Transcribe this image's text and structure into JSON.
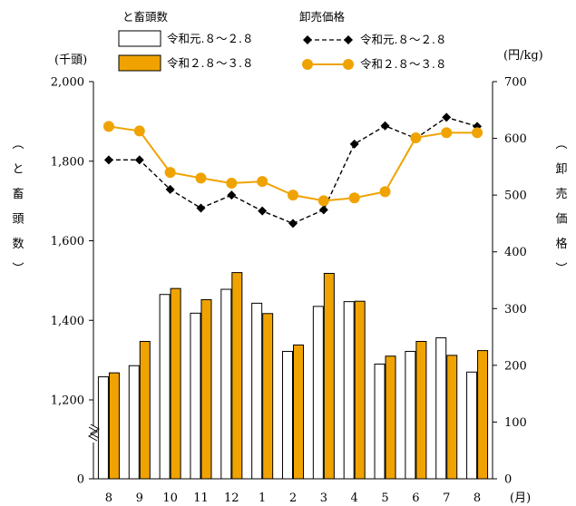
{
  "chart_data": {
    "type": "bar+line",
    "categories": [
      "8",
      "9",
      "10",
      "11",
      "12",
      "1",
      "2",
      "3",
      "4",
      "5",
      "6",
      "7",
      "8"
    ],
    "x_unit": "(月)",
    "left_axis": {
      "unit": "(千頭)",
      "label_chars": [
        "︵",
        "と",
        "畜",
        "頭",
        "数",
        "︶"
      ],
      "ticks": [
        "0",
        "1,200",
        "1,400",
        "1,600",
        "1,800",
        "2,000"
      ],
      "ylim": [
        1100,
        2000
      ],
      "broken": true
    },
    "right_axis": {
      "unit": "(円/kg)",
      "label_chars": [
        "︵",
        "卸",
        "売",
        "価",
        "格",
        "︶"
      ],
      "ticks": [
        "0",
        "100",
        "200",
        "300",
        "400",
        "500",
        "600",
        "700"
      ],
      "ylim": [
        0,
        700
      ]
    },
    "legend": {
      "bars_title": "と畜頭数",
      "lines_title": "卸売価格"
    },
    "bar_series": [
      {
        "name": "令和元.８～２.８",
        "color": "#ffffff",
        "values": [
          1258,
          1286,
          1465,
          1418,
          1478,
          1443,
          1322,
          1435,
          1447,
          1290,
          1322,
          1356,
          1270
        ]
      },
      {
        "name": "令和２.８～３.８",
        "color": "#f0a300",
        "values": [
          1268,
          1347,
          1480,
          1452,
          1520,
          1417,
          1338,
          1518,
          1448,
          1310,
          1347,
          1312,
          1324
        ]
      }
    ],
    "line_series": [
      {
        "name": "令和元.８～２.８",
        "color": "#000000",
        "marker": "diamond",
        "dashed": true,
        "values": [
          562,
          562,
          510,
          477,
          500,
          472,
          450,
          474,
          590,
          622,
          600,
          637,
          621
        ]
      },
      {
        "name": "令和２.８～３.８",
        "color": "#f0a300",
        "marker": "circle",
        "dashed": false,
        "values": [
          621,
          613,
          540,
          530,
          521,
          524,
          500,
          490,
          495,
          506,
          601,
          610,
          610
        ]
      }
    ]
  }
}
